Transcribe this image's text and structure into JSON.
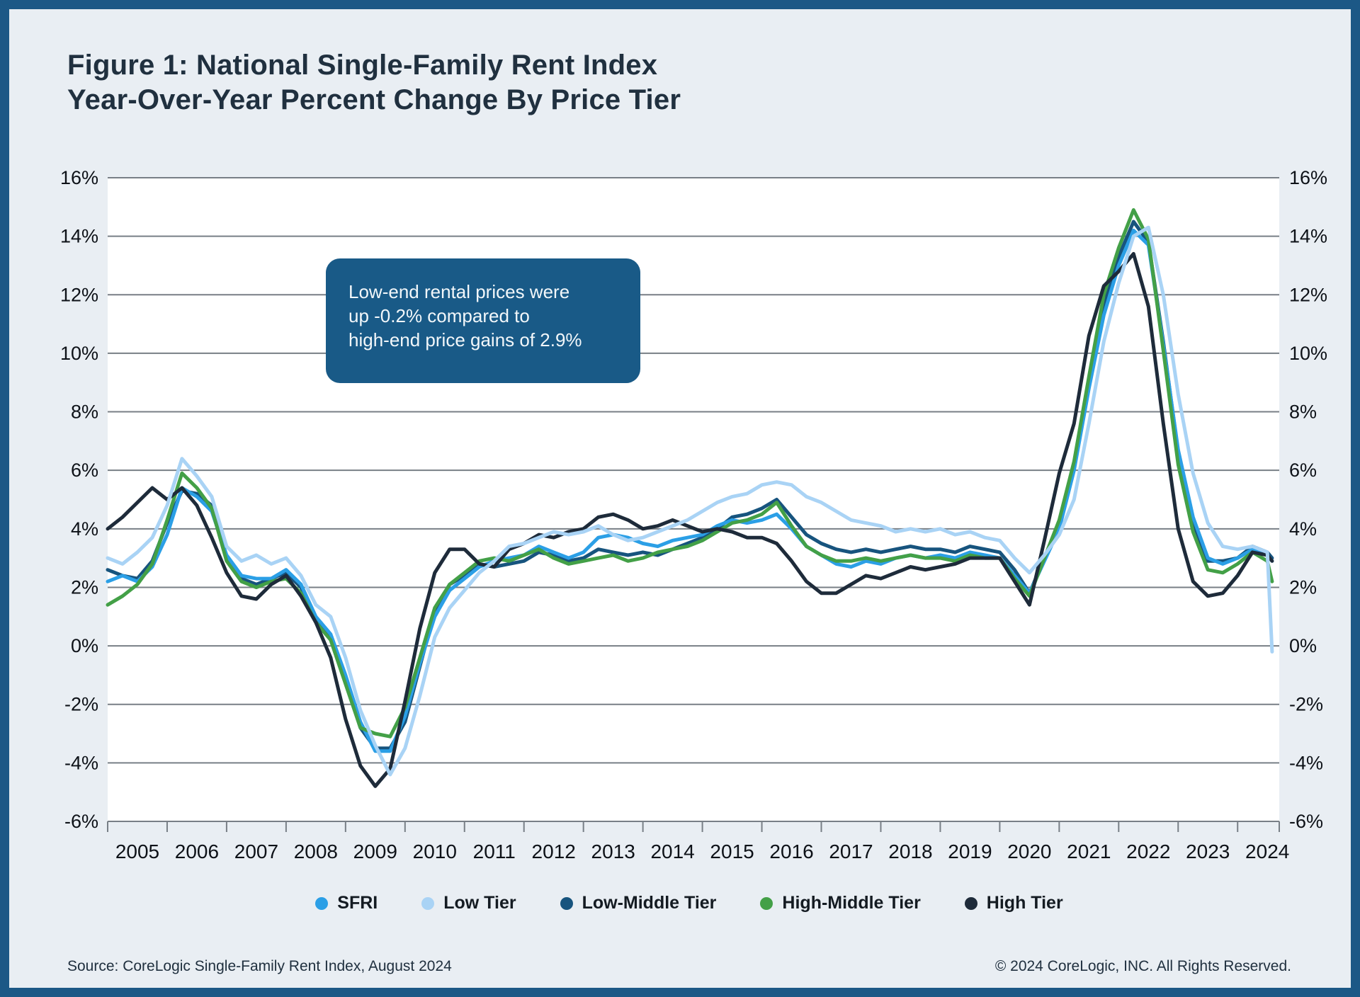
{
  "header": {
    "title_line1": "Figure 1: National Single-Family Rent Index",
    "title_line2": "Year-Over-Year Percent Change By Price Tier"
  },
  "annotation": {
    "text": "Low-end rental prices were\nup -0.2% compared to\nhigh-end price gains of 2.9%",
    "bg_color": "#195a87",
    "text_color": "#f2f7fa"
  },
  "footer": {
    "source": "Source: CoreLogic Single-Family Rent Index, August 2024",
    "copyright": "© 2024 CoreLogic, INC. All Rights Reserved."
  },
  "colors": {
    "page_bg": "#e9eef3",
    "frame": "#1c5886",
    "plot_bg": "#ffffff",
    "grid": "#787f86",
    "text": "#20303f"
  },
  "chart_data": {
    "type": "line",
    "title": "National Single-Family Rent Index Year-Over-Year Percent Change By Price Tier",
    "xlabel": "",
    "ylabel": "",
    "ylim": [
      -6,
      16
    ],
    "xlim": [
      2005,
      2024.7
    ],
    "grid": true,
    "legend_position": "bottom",
    "y_ticks": {
      "values": [
        16,
        14,
        12,
        10,
        8,
        6,
        4,
        2,
        0,
        -2,
        -4,
        -6
      ],
      "labels": [
        "16%",
        "14%",
        "12%",
        "10%",
        "8%",
        "6%",
        "4%",
        "2%",
        "0%",
        "-2%",
        "-4%",
        "-6%"
      ]
    },
    "x_tick_years": [
      2005,
      2006,
      2007,
      2008,
      2009,
      2010,
      2011,
      2012,
      2013,
      2014,
      2015,
      2016,
      2017,
      2018,
      2019,
      2020,
      2021,
      2022,
      2023,
      2024
    ],
    "x": [
      2005.0,
      2005.25,
      2005.5,
      2005.75,
      2006.0,
      2006.25,
      2006.5,
      2006.75,
      2007.0,
      2007.25,
      2007.5,
      2007.75,
      2008.0,
      2008.25,
      2008.5,
      2008.75,
      2009.0,
      2009.25,
      2009.5,
      2009.75,
      2010.0,
      2010.25,
      2010.5,
      2010.75,
      2011.0,
      2011.25,
      2011.5,
      2011.75,
      2012.0,
      2012.25,
      2012.5,
      2012.75,
      2013.0,
      2013.25,
      2013.5,
      2013.75,
      2014.0,
      2014.25,
      2014.5,
      2014.75,
      2015.0,
      2015.25,
      2015.5,
      2015.75,
      2016.0,
      2016.25,
      2016.5,
      2016.75,
      2017.0,
      2017.25,
      2017.5,
      2017.75,
      2018.0,
      2018.25,
      2018.5,
      2018.75,
      2019.0,
      2019.25,
      2019.5,
      2019.75,
      2020.0,
      2020.25,
      2020.5,
      2020.75,
      2021.0,
      2021.25,
      2021.5,
      2021.75,
      2022.0,
      2022.25,
      2022.5,
      2022.75,
      2023.0,
      2023.25,
      2023.5,
      2023.75,
      2024.0,
      2024.25,
      2024.5,
      2024.58
    ],
    "series": [
      {
        "name": "SFRI",
        "color": "#2b9fe6",
        "values": [
          2.2,
          2.4,
          2.2,
          2.7,
          3.8,
          5.4,
          5.1,
          4.6,
          3.1,
          2.4,
          2.3,
          2.3,
          2.6,
          2.1,
          1.0,
          0.4,
          -1.0,
          -2.6,
          -3.6,
          -3.6,
          -2.4,
          -0.6,
          1.0,
          1.9,
          2.3,
          2.7,
          2.9,
          3.0,
          3.1,
          3.4,
          3.2,
          3.0,
          3.2,
          3.7,
          3.8,
          3.7,
          3.5,
          3.4,
          3.6,
          3.7,
          3.8,
          4.1,
          4.3,
          4.2,
          4.3,
          4.5,
          4.0,
          3.4,
          3.1,
          2.8,
          2.7,
          2.9,
          2.8,
          3.0,
          3.1,
          3.0,
          3.1,
          3.0,
          3.2,
          3.1,
          3.0,
          2.4,
          1.8,
          2.9,
          4.0,
          6.0,
          8.8,
          11.3,
          13.0,
          14.2,
          13.7,
          10.3,
          6.7,
          4.4,
          3.0,
          2.8,
          3.0,
          3.3,
          3.1,
          2.9
        ]
      },
      {
        "name": "Low Tier",
        "color": "#a9d3f5",
        "values": [
          3.0,
          2.8,
          3.2,
          3.7,
          4.8,
          6.4,
          5.8,
          5.1,
          3.4,
          2.9,
          3.1,
          2.8,
          3.0,
          2.4,
          1.4,
          1.0,
          -0.4,
          -2.2,
          -3.4,
          -4.4,
          -3.5,
          -1.7,
          0.3,
          1.3,
          1.9,
          2.5,
          2.9,
          3.4,
          3.5,
          3.7,
          3.9,
          3.8,
          3.9,
          4.1,
          3.8,
          3.6,
          3.7,
          3.9,
          4.1,
          4.3,
          4.6,
          4.9,
          5.1,
          5.2,
          5.5,
          5.6,
          5.5,
          5.1,
          4.9,
          4.6,
          4.3,
          4.2,
          4.1,
          3.9,
          4.0,
          3.9,
          4.0,
          3.8,
          3.9,
          3.7,
          3.6,
          3.0,
          2.5,
          3.1,
          3.8,
          5.0,
          7.6,
          10.4,
          12.4,
          14.0,
          14.3,
          12.0,
          8.6,
          5.9,
          4.2,
          3.4,
          3.3,
          3.4,
          3.2,
          -0.2
        ]
      },
      {
        "name": "Low-Middle Tier",
        "color": "#17547e",
        "values": [
          2.6,
          2.4,
          2.3,
          2.9,
          4.2,
          5.3,
          5.2,
          4.8,
          3.0,
          2.3,
          2.1,
          2.3,
          2.5,
          2.0,
          0.9,
          0.3,
          -1.2,
          -2.8,
          -3.5,
          -3.5,
          -2.6,
          -0.7,
          1.2,
          2.1,
          2.4,
          2.8,
          2.7,
          2.8,
          2.9,
          3.2,
          3.1,
          2.9,
          3.0,
          3.3,
          3.2,
          3.1,
          3.2,
          3.1,
          3.3,
          3.5,
          3.7,
          4.0,
          4.4,
          4.5,
          4.7,
          5.0,
          4.4,
          3.8,
          3.5,
          3.3,
          3.2,
          3.3,
          3.2,
          3.3,
          3.4,
          3.3,
          3.3,
          3.2,
          3.4,
          3.3,
          3.2,
          2.6,
          1.8,
          3.0,
          4.2,
          6.2,
          9.0,
          11.7,
          13.3,
          14.5,
          13.8,
          10.4,
          6.6,
          4.2,
          2.9,
          2.9,
          3.0,
          3.4,
          3.2,
          3.0
        ]
      },
      {
        "name": "High-Middle Tier",
        "color": "#43a047",
        "values": [
          1.4,
          1.7,
          2.1,
          2.8,
          4.3,
          5.9,
          5.4,
          4.7,
          2.9,
          2.2,
          2.0,
          2.2,
          2.3,
          1.8,
          0.8,
          0.2,
          -1.3,
          -2.8,
          -3.0,
          -3.1,
          -2.1,
          -0.4,
          1.3,
          2.1,
          2.5,
          2.9,
          3.0,
          2.9,
          3.1,
          3.3,
          3.0,
          2.8,
          2.9,
          3.0,
          3.1,
          2.9,
          3.0,
          3.2,
          3.3,
          3.4,
          3.6,
          3.9,
          4.2,
          4.3,
          4.5,
          4.9,
          4.1,
          3.4,
          3.1,
          2.9,
          2.9,
          3.0,
          2.9,
          3.0,
          3.1,
          3.0,
          3.0,
          2.9,
          3.1,
          3.0,
          3.0,
          2.3,
          1.7,
          3.0,
          4.3,
          6.3,
          9.2,
          12.0,
          13.6,
          14.9,
          13.9,
          10.1,
          6.2,
          3.9,
          2.6,
          2.5,
          2.8,
          3.2,
          2.9,
          2.2
        ]
      },
      {
        "name": "High Tier",
        "color": "#1e2b3a",
        "values": [
          4.0,
          4.4,
          4.9,
          5.4,
          5.0,
          5.4,
          4.8,
          3.7,
          2.5,
          1.7,
          1.6,
          2.1,
          2.4,
          1.7,
          0.8,
          -0.4,
          -2.5,
          -4.1,
          -4.8,
          -4.2,
          -1.9,
          0.6,
          2.5,
          3.3,
          3.3,
          2.8,
          2.7,
          3.3,
          3.5,
          3.8,
          3.7,
          3.9,
          4.0,
          4.4,
          4.5,
          4.3,
          4.0,
          4.1,
          4.3,
          4.1,
          3.9,
          4.0,
          3.9,
          3.7,
          3.7,
          3.5,
          2.9,
          2.2,
          1.8,
          1.8,
          2.1,
          2.4,
          2.3,
          2.5,
          2.7,
          2.6,
          2.7,
          2.8,
          3.0,
          3.0,
          3.0,
          2.2,
          1.4,
          3.6,
          5.9,
          7.6,
          10.6,
          12.3,
          12.8,
          13.4,
          11.6,
          7.6,
          4.0,
          2.2,
          1.7,
          1.8,
          2.4,
          3.2,
          3.1,
          2.9
        ]
      }
    ],
    "draw_order": [
      2,
      0,
      3,
      4,
      1
    ]
  }
}
